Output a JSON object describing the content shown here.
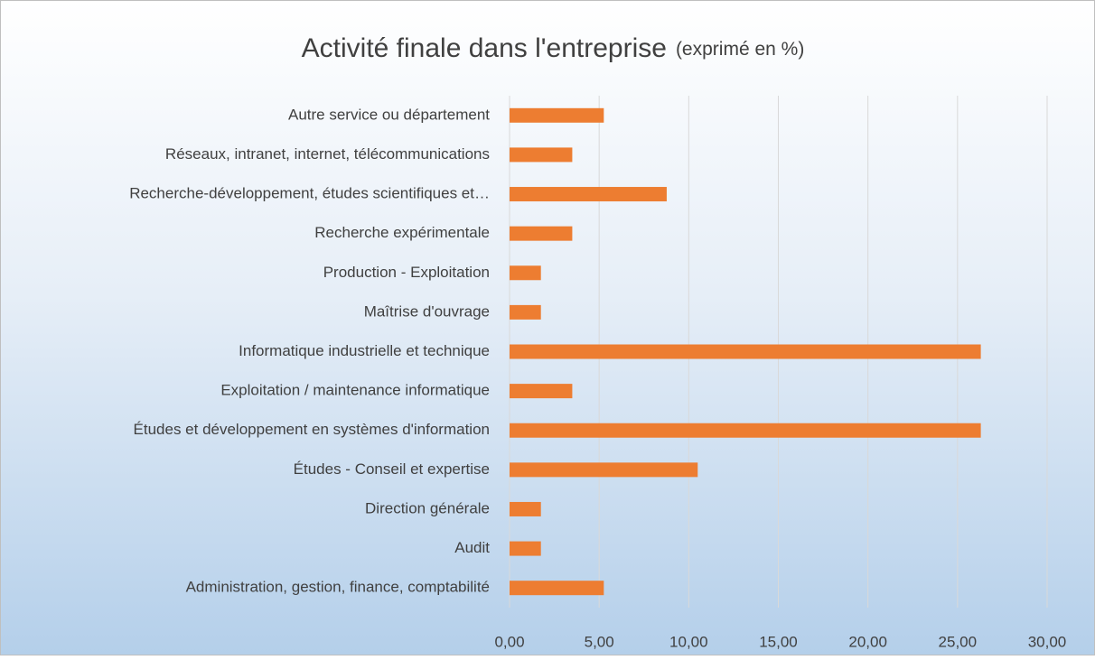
{
  "chart_data": {
    "type": "bar",
    "orientation": "horizontal",
    "title": "Activité finale dans l'entreprise",
    "subtitle": "(exprimé en %)",
    "categories": [
      "Autre service ou département",
      "Réseaux, intranet, internet,  télécommunications",
      "Recherche-développement, études scientifiques et…",
      "Recherche expérimentale",
      "Production - Exploitation",
      "Maîtrise d'ouvrage",
      "Informatique industrielle et technique",
      "Exploitation / maintenance informatique",
      "Études et développement en systèmes d'information",
      "Études - Conseil et expertise",
      "Direction générale",
      "Audit",
      "Administration, gestion, finance, comptabilité"
    ],
    "values": [
      5.26,
      3.5,
      8.77,
      3.5,
      1.75,
      1.75,
      26.3,
      3.5,
      26.3,
      10.5,
      1.75,
      1.75,
      5.26
    ],
    "color": "#ed7d31",
    "xlim": [
      0,
      30
    ],
    "xticks": [
      {
        "value": 0,
        "label": "0,00"
      },
      {
        "value": 5,
        "label": "5,00"
      },
      {
        "value": 10,
        "label": "10,00"
      },
      {
        "value": 15,
        "label": "15,00"
      },
      {
        "value": 20,
        "label": "20,00"
      },
      {
        "value": 25,
        "label": "25,00"
      },
      {
        "value": 30,
        "label": "30,00"
      }
    ],
    "grid": true
  }
}
